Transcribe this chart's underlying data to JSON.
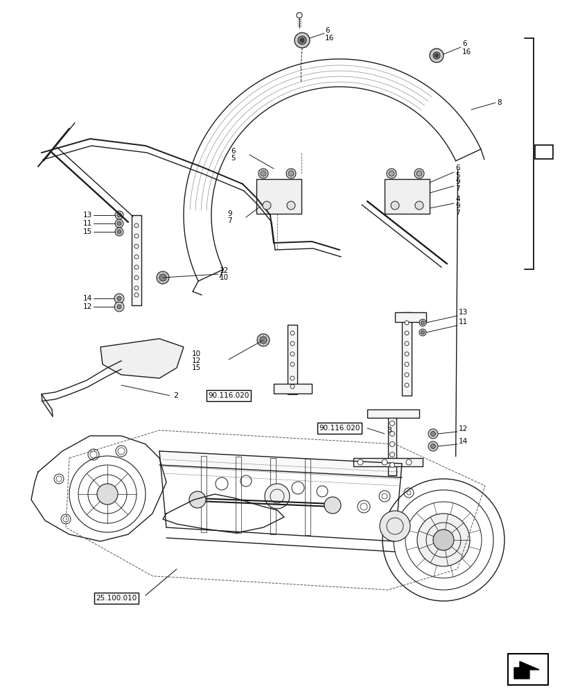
{
  "background_color": "#ffffff",
  "line_color": "#1a1a1a",
  "fig_width": 8.12,
  "fig_height": 10.0,
  "dpi": 100
}
